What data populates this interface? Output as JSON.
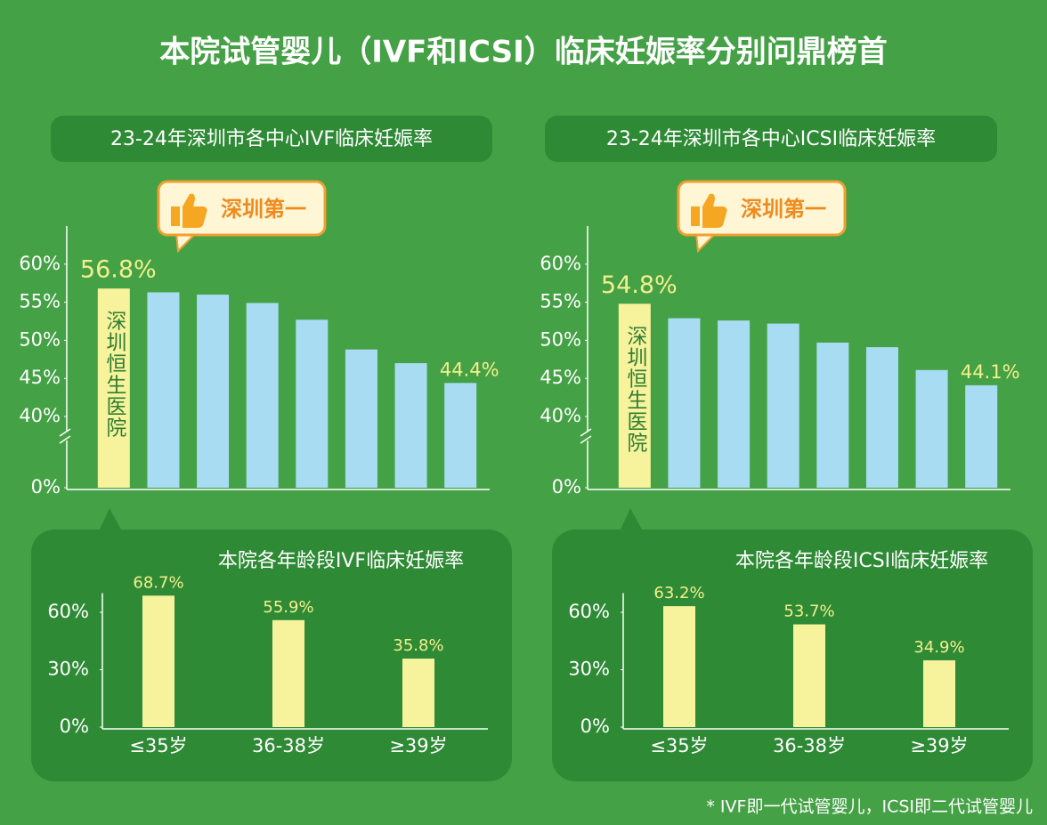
{
  "title": "本院试管婴儿（IVF和ICSI）临床妊娠率分别问鼎榜首",
  "footnote": "* IVF即一代试管婴儿，ICSI即二代试管婴儿",
  "chart_data": [
    {
      "type": "bar",
      "title": "23-24年深圳市各中心IVF临床妊娠率",
      "annotation": "深圳第一",
      "categories": [
        "深圳恒生医院",
        null,
        null,
        null,
        null,
        null,
        null,
        null
      ],
      "values": [
        56.8,
        56.3,
        56.0,
        54.9,
        52.7,
        48.8,
        47.0,
        44.4
      ],
      "value_labels": [
        "56.8%",
        null,
        null,
        null,
        null,
        null,
        null,
        "44.4%"
      ],
      "colors": [
        "#f7f39d",
        "#a8dcf2",
        "#a8dcf2",
        "#a8dcf2",
        "#a8dcf2",
        "#a8dcf2",
        "#a8dcf2",
        "#a8dcf2"
      ],
      "ylim": [
        0,
        65
      ],
      "y_break": [
        0,
        40
      ],
      "yticks": [
        {
          "value": 0,
          "label": "0%"
        },
        {
          "value": 40,
          "label": "40%"
        },
        {
          "value": 45,
          "label": "45%"
        },
        {
          "value": 50,
          "label": "50%"
        },
        {
          "value": 55,
          "label": "55%"
        },
        {
          "value": 60,
          "label": "60%"
        }
      ]
    },
    {
      "type": "bar",
      "title": "23-24年深圳市各中心ICSI临床妊娠率",
      "annotation": "深圳第一",
      "categories": [
        "深圳恒生医院",
        null,
        null,
        null,
        null,
        null,
        null,
        null
      ],
      "values": [
        54.8,
        52.9,
        52.6,
        52.2,
        49.7,
        49.1,
        46.1,
        44.1
      ],
      "value_labels": [
        "54.8%",
        null,
        null,
        null,
        null,
        null,
        null,
        "44.1%"
      ],
      "colors": [
        "#f7f39d",
        "#a8dcf2",
        "#a8dcf2",
        "#a8dcf2",
        "#a8dcf2",
        "#a8dcf2",
        "#a8dcf2",
        "#a8dcf2"
      ],
      "ylim": [
        0,
        65
      ],
      "y_break": [
        0,
        40
      ],
      "yticks": [
        {
          "value": 0,
          "label": "0%"
        },
        {
          "value": 40,
          "label": "40%"
        },
        {
          "value": 45,
          "label": "45%"
        },
        {
          "value": 50,
          "label": "50%"
        },
        {
          "value": 55,
          "label": "55%"
        },
        {
          "value": 60,
          "label": "60%"
        }
      ]
    },
    {
      "type": "bar",
      "title": "本院各年龄段IVF临床妊娠率",
      "categories": [
        "≤35岁",
        "36-38岁",
        "≥39岁"
      ],
      "values": [
        68.7,
        55.9,
        35.8
      ],
      "value_labels": [
        "68.7%",
        "55.9%",
        "35.8%"
      ],
      "colors": [
        "#f7f39d",
        "#f7f39d",
        "#f7f39d"
      ],
      "ylim": [
        0,
        70
      ],
      "yticks": [
        {
          "value": 0,
          "label": "0%"
        },
        {
          "value": 30,
          "label": "30%"
        },
        {
          "value": 60,
          "label": "60%"
        }
      ]
    },
    {
      "type": "bar",
      "title": "本院各年龄段ICSI临床妊娠率",
      "categories": [
        "≤35岁",
        "36-38岁",
        "≥39岁"
      ],
      "values": [
        63.2,
        53.7,
        34.9
      ],
      "value_labels": [
        "63.2%",
        "53.7%",
        "34.9%"
      ],
      "colors": [
        "#f7f39d",
        "#f7f39d",
        "#f7f39d"
      ],
      "ylim": [
        0,
        70
      ],
      "yticks": [
        {
          "value": 0,
          "label": "0%"
        },
        {
          "value": 30,
          "label": "30%"
        },
        {
          "value": 60,
          "label": "60%"
        }
      ]
    }
  ]
}
